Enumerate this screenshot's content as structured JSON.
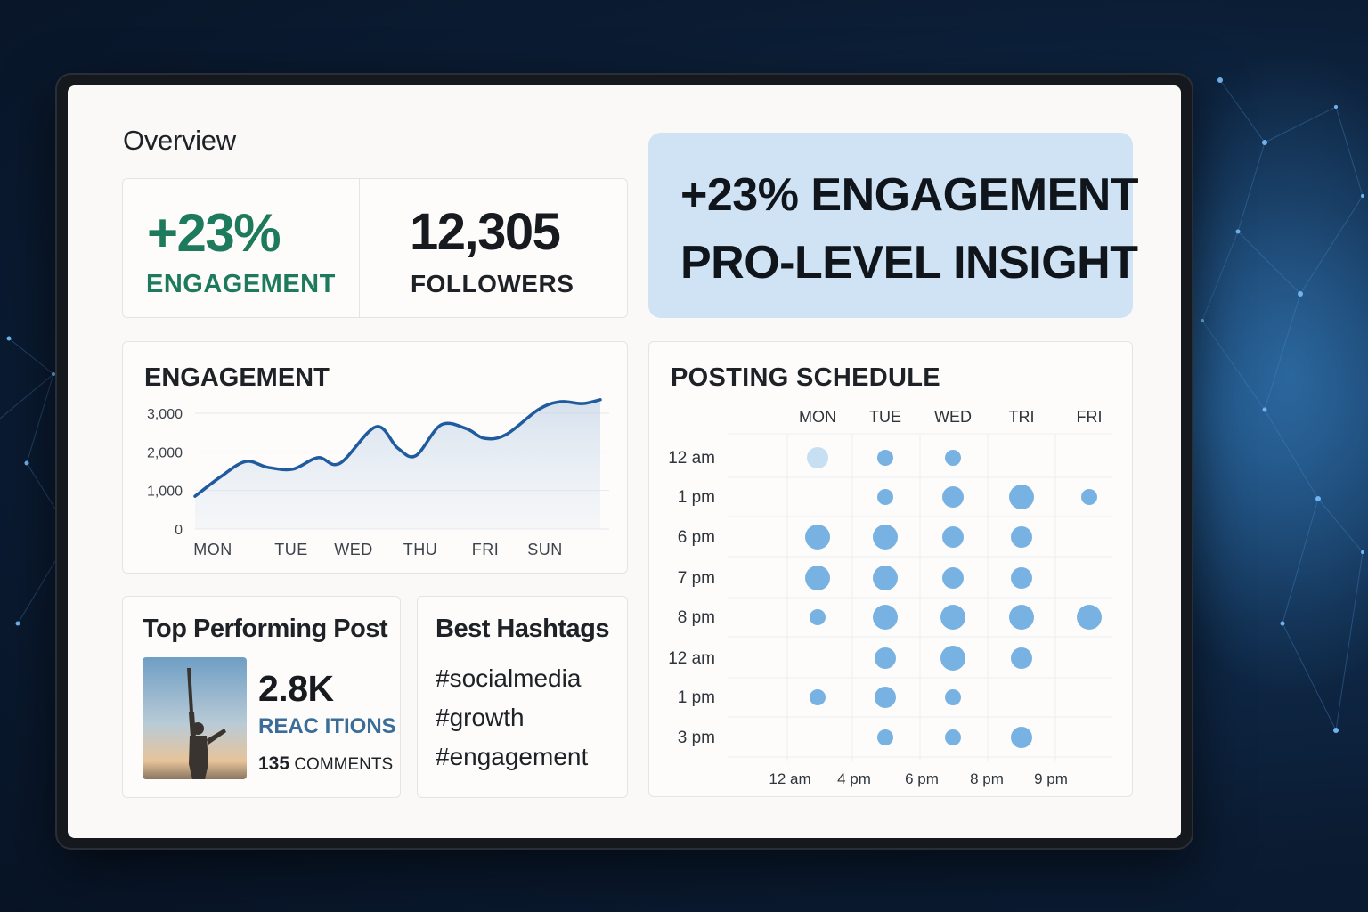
{
  "overview": {
    "title": "Overview"
  },
  "stats": {
    "engagement_value": "+23%",
    "engagement_label": "ENGAGEMENT",
    "followers_value": "12,305",
    "followers_label": "FOLLOWERS"
  },
  "insight": {
    "line1": "+23% ENGAGEMENT",
    "line2": "PRO-LEVEL INSIGHT",
    "bg_color": "#cfe3f4"
  },
  "engagement_chart": {
    "title": "ENGAGEMENT",
    "accent_color": "#1f5b9e"
  },
  "chart_data": [
    {
      "type": "line",
      "title": "ENGAGEMENT",
      "x_tick_labels": [
        "MON",
        "TUE",
        "WED",
        "THU",
        "FRI",
        "SUN"
      ],
      "y_tick_labels": [
        "0",
        "1,000",
        "2,000",
        "3,000"
      ],
      "ylim": [
        0,
        3000
      ],
      "grid": true,
      "series": [
        {
          "x": [
            0,
            0.35,
            0.7,
            1.0,
            1.35,
            1.7,
            2.0,
            2.5,
            2.8,
            3.05,
            3.4,
            3.75,
            4.0,
            4.3,
            4.75,
            5.05,
            5.35,
            5.6
          ],
          "values": [
            850,
            1350,
            1750,
            1600,
            1550,
            1850,
            1700,
            2650,
            2100,
            1900,
            2700,
            2600,
            2350,
            2450,
            3100,
            3300,
            3250,
            3350
          ]
        }
      ]
    },
    {
      "type": "scatter",
      "title": "POSTING SCHEDULE",
      "columns": [
        "MON",
        "TUE",
        "WED",
        "TRI",
        "FRI"
      ],
      "rows": [
        "12 am",
        "1 pm",
        "6 pm",
        "7 pm",
        "8 pm",
        "12 am",
        "1 pm",
        "3 pm"
      ],
      "x_footer_labels": [
        "12 am",
        "4 pm",
        "6 pm",
        "8 pm",
        "9 pm"
      ],
      "point_color": "#78b2e2",
      "points": [
        {
          "row": 0,
          "col": 0,
          "size": 2,
          "faded": true
        },
        {
          "row": 0,
          "col": 1,
          "size": 1
        },
        {
          "row": 0,
          "col": 2,
          "size": 1
        },
        {
          "row": 1,
          "col": 1,
          "size": 1
        },
        {
          "row": 1,
          "col": 2,
          "size": 2
        },
        {
          "row": 1,
          "col": 3,
          "size": 3
        },
        {
          "row": 1,
          "col": 4,
          "size": 1
        },
        {
          "row": 2,
          "col": 0,
          "size": 3
        },
        {
          "row": 2,
          "col": 1,
          "size": 3
        },
        {
          "row": 2,
          "col": 2,
          "size": 2
        },
        {
          "row": 2,
          "col": 3,
          "size": 2
        },
        {
          "row": 3,
          "col": 0,
          "size": 3
        },
        {
          "row": 3,
          "col": 1,
          "size": 3
        },
        {
          "row": 3,
          "col": 2,
          "size": 2
        },
        {
          "row": 3,
          "col": 3,
          "size": 2
        },
        {
          "row": 4,
          "col": 0,
          "size": 1
        },
        {
          "row": 4,
          "col": 1,
          "size": 3
        },
        {
          "row": 4,
          "col": 2,
          "size": 3
        },
        {
          "row": 4,
          "col": 3,
          "size": 3
        },
        {
          "row": 4,
          "col": 4,
          "size": 3
        },
        {
          "row": 5,
          "col": 1,
          "size": 2
        },
        {
          "row": 5,
          "col": 2,
          "size": 3
        },
        {
          "row": 5,
          "col": 3,
          "size": 2
        },
        {
          "row": 6,
          "col": 0,
          "size": 1
        },
        {
          "row": 6,
          "col": 1,
          "size": 2
        },
        {
          "row": 6,
          "col": 2,
          "size": 1
        },
        {
          "row": 7,
          "col": 1,
          "size": 1
        },
        {
          "row": 7,
          "col": 2,
          "size": 1
        },
        {
          "row": 7,
          "col": 3,
          "size": 2
        }
      ]
    }
  ],
  "top_post": {
    "title": "Top Performing Post",
    "reactions_value": "2.8K",
    "reactions_label": "REAC ITIONS",
    "comments_count": "135",
    "comments_label": "COMMENTS"
  },
  "hashtags": {
    "title": "Best Hashtags",
    "tags": [
      "#socialmedia",
      "#growth",
      "#engagement"
    ]
  },
  "posting_schedule": {
    "title": "POSTING SCHEDULE"
  }
}
